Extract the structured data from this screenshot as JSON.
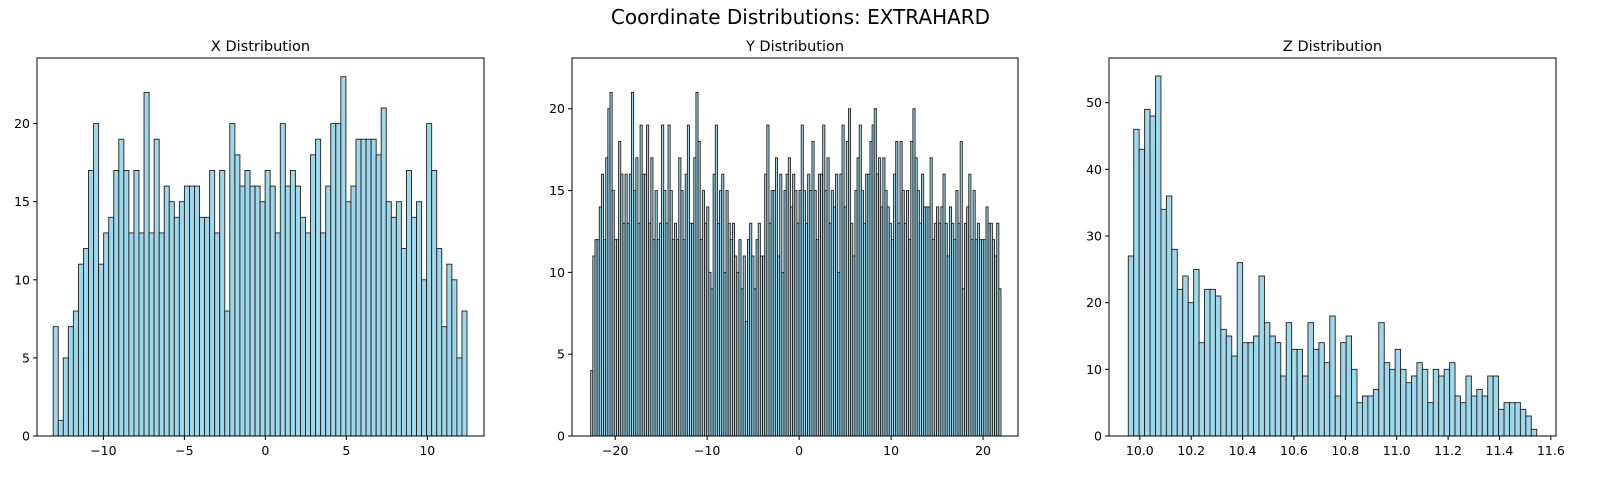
{
  "figure": {
    "suptitle": "Coordinate Distributions: EXTRAHARD",
    "colors": {
      "bar_fill": "#9fd8ea",
      "bar_edge": "#1e1e1e"
    }
  },
  "chart_data": [
    {
      "type": "bar",
      "title": "X Distribution",
      "xlabel": "",
      "ylabel": "",
      "x_range": [
        -13.1,
        12.45
      ],
      "xlim": [
        -14.1,
        13.5
      ],
      "ylim": [
        0,
        24.2
      ],
      "xticks": [
        -10,
        -5,
        0,
        5,
        10
      ],
      "xtick_labels": [
        "−10",
        "−5",
        "0",
        "5",
        "10"
      ],
      "yticks": [
        0,
        5,
        10,
        15,
        20
      ],
      "values": [
        7,
        1,
        5,
        7,
        8,
        11,
        12,
        17,
        20,
        11,
        13,
        14,
        17,
        19,
        17,
        13,
        17,
        13,
        22,
        13,
        19,
        13,
        16,
        15,
        14,
        15,
        16,
        16,
        16,
        14,
        14,
        17,
        13,
        17,
        8,
        20,
        18,
        16,
        17,
        16,
        16,
        15,
        17,
        16,
        13,
        20,
        16,
        17,
        16,
        14,
        13,
        18,
        19,
        13,
        16,
        20,
        20,
        23,
        15,
        16,
        19,
        19,
        19,
        19,
        18,
        21,
        15,
        14,
        15,
        12,
        17,
        14,
        15,
        10,
        20,
        17,
        12,
        7,
        11,
        10,
        5,
        8
      ],
      "grid": false
    },
    {
      "type": "bar",
      "title": "Y Distribution",
      "xlabel": "",
      "ylabel": "",
      "x_range": [
        -22.67,
        21.95
      ],
      "xlim": [
        -24.7,
        23.8
      ],
      "ylim": [
        0,
        23.1
      ],
      "xticks": [
        -20,
        -10,
        0,
        10,
        20
      ],
      "xtick_labels": [
        "−20",
        "−10",
        "0",
        "10",
        "20"
      ],
      "yticks": [
        0,
        5,
        10,
        15,
        20
      ],
      "values": [
        4,
        11,
        12,
        12,
        14,
        16,
        12,
        17,
        20,
        21,
        15,
        12,
        12,
        18,
        16,
        13,
        16,
        13,
        16,
        21,
        15,
        17,
        13,
        19,
        16,
        16,
        19,
        13,
        17,
        12,
        15,
        12,
        13,
        19,
        15,
        13,
        19,
        15,
        12,
        13,
        12,
        17,
        15,
        12,
        16,
        19,
        13,
        13,
        17,
        21,
        18,
        12,
        15,
        13,
        14,
        10,
        9,
        16,
        19,
        13,
        15,
        16,
        10,
        15,
        13,
        12,
        13,
        11,
        10,
        12,
        9,
        11,
        7,
        12,
        13,
        11,
        9,
        12,
        13,
        11,
        11,
        16,
        19,
        13,
        15,
        15,
        17,
        11,
        16,
        10,
        15,
        16,
        17,
        14,
        16,
        15,
        13,
        15,
        19,
        15,
        13,
        16,
        15,
        18,
        15,
        12,
        16,
        16,
        19,
        15,
        17,
        13,
        15,
        14,
        16,
        10,
        16,
        19,
        14,
        18,
        20,
        13,
        11,
        15,
        17,
        19,
        15,
        13,
        16,
        16,
        18,
        19,
        20,
        16,
        17,
        14,
        17,
        15,
        14,
        13,
        12,
        16,
        18,
        13,
        18,
        15,
        13,
        15,
        12,
        18,
        20,
        17,
        15,
        13,
        16,
        14,
        14,
        14,
        17,
        12,
        13,
        14,
        13,
        14,
        16,
        13,
        11,
        14,
        13,
        12,
        15,
        13,
        18,
        9,
        13,
        14,
        16,
        12,
        15,
        12,
        13,
        12,
        12,
        12,
        14,
        13,
        13,
        12,
        11,
        13,
        9
      ],
      "grid": false
    },
    {
      "type": "bar",
      "title": "Z Distribution",
      "xlabel": "",
      "ylabel": "",
      "x_range": [
        9.955,
        11.545
      ],
      "xlim": [
        9.88,
        11.62
      ],
      "ylim": [
        0,
        56.7
      ],
      "xticks": [
        10.0,
        10.2,
        10.4,
        10.6,
        10.8,
        11.0,
        11.2,
        11.4,
        11.6
      ],
      "xtick_labels": [
        "10.0",
        "10.2",
        "10.4",
        "10.6",
        "10.8",
        "11.0",
        "11.2",
        "11.4",
        "11.6"
      ],
      "yticks": [
        0,
        10,
        20,
        30,
        40,
        50
      ],
      "values": [
        27,
        46,
        43,
        49,
        48,
        54,
        34,
        36,
        28,
        22,
        24,
        20,
        25,
        14,
        22,
        22,
        21,
        16,
        15,
        12,
        26,
        14,
        14,
        15,
        24,
        17,
        15,
        14,
        9,
        17,
        13,
        13,
        9,
        17,
        13,
        14,
        11,
        18,
        6,
        14,
        15,
        10,
        5,
        6,
        6,
        7,
        17,
        11,
        10,
        13,
        10,
        8,
        9,
        11,
        10,
        5,
        10,
        9,
        10,
        11,
        6,
        5,
        9,
        6,
        7,
        6,
        9,
        9,
        4,
        5,
        5,
        5,
        4,
        3,
        1
      ],
      "grid": false
    }
  ]
}
